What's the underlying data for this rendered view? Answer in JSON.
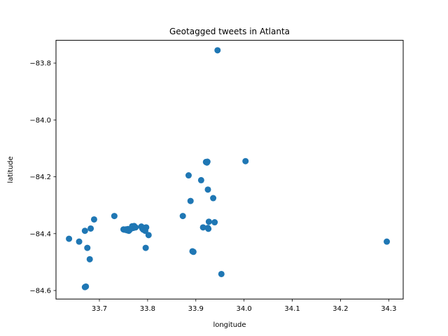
{
  "chart_data": {
    "type": "scatter",
    "title": "Geotagged tweets in Atlanta",
    "xlabel": "longitude",
    "ylabel": "latitude",
    "xlim": [
      33.61,
      34.33
    ],
    "ylim": [
      -84.63,
      -83.72
    ],
    "xticks": [
      33.7,
      33.8,
      33.9,
      34.0,
      34.1,
      34.2,
      34.3
    ],
    "xtick_labels": [
      "33.7",
      "33.8",
      "33.9",
      "34.0",
      "34.1",
      "34.2",
      "34.3"
    ],
    "yticks": [
      -84.6,
      -84.4,
      -84.2,
      -84.0,
      -83.8
    ],
    "ytick_labels": [
      "−84.6",
      "−84.4",
      "−84.2",
      "−84.0",
      "−83.8"
    ],
    "grid": false,
    "color": "#1f77b4",
    "points": [
      [
        33.945,
        -83.755
      ],
      [
        33.637,
        -84.418
      ],
      [
        33.658,
        -84.428
      ],
      [
        33.67,
        -84.39
      ],
      [
        33.675,
        -84.45
      ],
      [
        33.67,
        -84.588
      ],
      [
        33.672,
        -84.586
      ],
      [
        33.68,
        -84.49
      ],
      [
        33.682,
        -84.382
      ],
      [
        33.689,
        -84.35
      ],
      [
        33.731,
        -84.338
      ],
      [
        33.75,
        -84.385
      ],
      [
        33.752,
        -84.386
      ],
      [
        33.755,
        -84.385
      ],
      [
        33.757,
        -84.388
      ],
      [
        33.759,
        -84.384
      ],
      [
        33.761,
        -84.39
      ],
      [
        33.763,
        -84.386
      ],
      [
        33.765,
        -84.383
      ],
      [
        33.768,
        -84.374
      ],
      [
        33.77,
        -84.38
      ],
      [
        33.772,
        -84.373
      ],
      [
        33.775,
        -84.378
      ],
      [
        33.787,
        -84.375
      ],
      [
        33.789,
        -84.382
      ],
      [
        33.791,
        -84.386
      ],
      [
        33.793,
        -84.38
      ],
      [
        33.795,
        -84.39
      ],
      [
        33.797,
        -84.378
      ],
      [
        33.796,
        -84.45
      ],
      [
        33.802,
        -84.405
      ],
      [
        33.873,
        -84.338
      ],
      [
        33.885,
        -84.195
      ],
      [
        33.889,
        -84.285
      ],
      [
        33.893,
        -84.462
      ],
      [
        33.895,
        -84.464
      ],
      [
        33.911,
        -84.212
      ],
      [
        33.915,
        -84.378
      ],
      [
        33.921,
        -84.148
      ],
      [
        33.923,
        -84.15
      ],
      [
        33.924,
        -84.147
      ],
      [
        33.925,
        -84.245
      ],
      [
        33.925,
        -84.38
      ],
      [
        33.926,
        -84.383
      ],
      [
        33.927,
        -84.358
      ],
      [
        33.936,
        -84.275
      ],
      [
        33.939,
        -84.36
      ],
      [
        33.953,
        -84.542
      ],
      [
        34.003,
        -84.145
      ],
      [
        34.296,
        -84.428
      ]
    ]
  }
}
